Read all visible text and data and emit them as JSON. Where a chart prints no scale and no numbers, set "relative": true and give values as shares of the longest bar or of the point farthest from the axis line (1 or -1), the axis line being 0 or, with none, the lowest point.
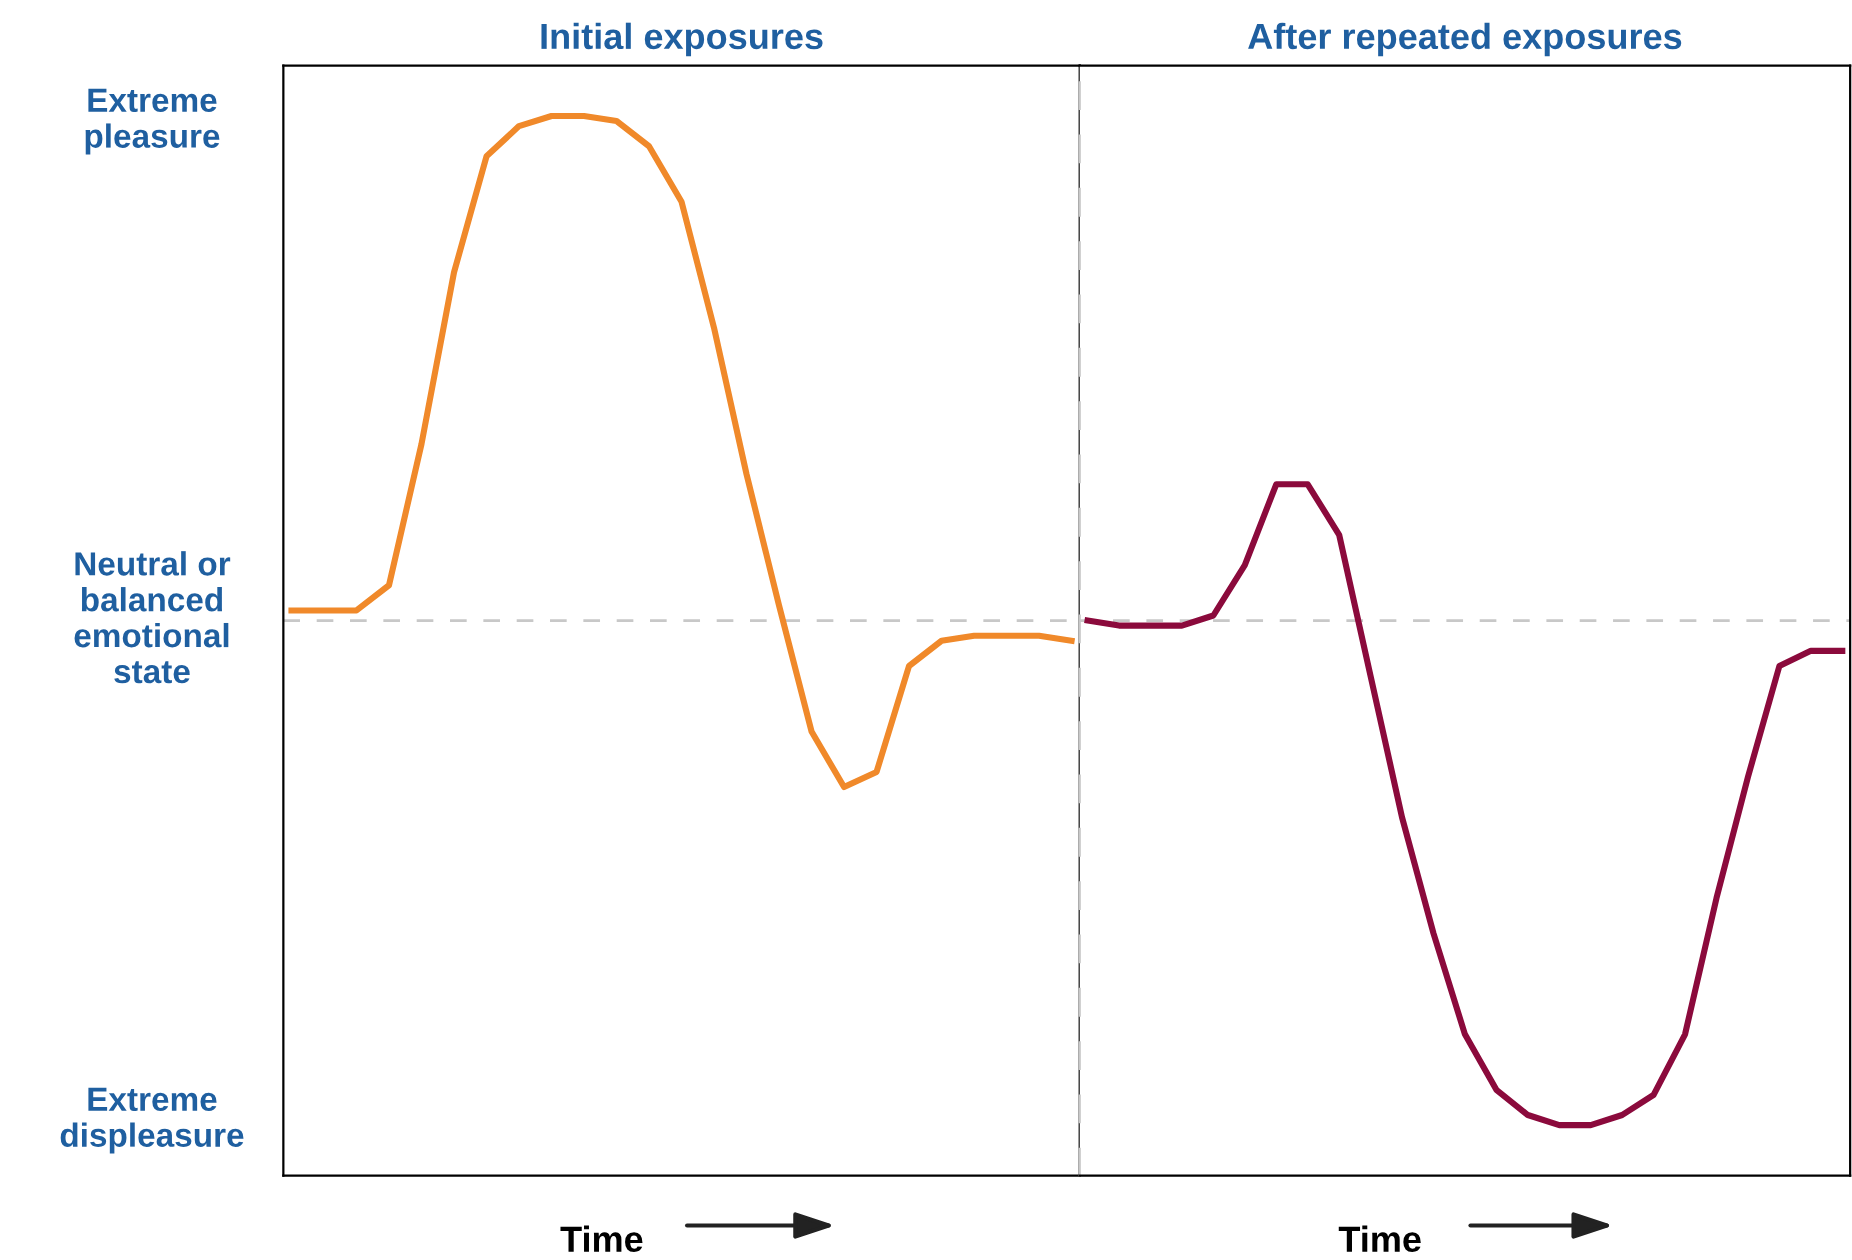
{
  "chart_data": [
    {
      "type": "line",
      "title": "Initial exposures",
      "xlabel": "Time",
      "relative": true,
      "categories": [
        null,
        null,
        null,
        null,
        null,
        null,
        null,
        null,
        null,
        null,
        null,
        null,
        null,
        null,
        null,
        null,
        null,
        null,
        null,
        null,
        null,
        null,
        null,
        null,
        null
      ],
      "series": [
        {
          "color": "#f0892a",
          "values": [
            0.02,
            0.02,
            0.02,
            0.07,
            0.35,
            0.69,
            0.92,
            0.98,
            1.0,
            1.0,
            0.99,
            0.94,
            0.83,
            0.58,
            0.29,
            0.03,
            -0.22,
            -0.33,
            -0.3,
            -0.09,
            -0.04,
            -0.03,
            -0.03,
            -0.03,
            -0.04
          ]
        }
      ],
      "annotations": [
        "Extreme\npleasure",
        "Neutral or\nbalanced\nemotional\nstate",
        "Extreme\ndispleasure"
      ],
      "ref_lines": [
        {
          "axis": "y",
          "value": 0,
          "color": "#c8c8c8",
          "line_style": "dashed"
        }
      ]
    },
    {
      "type": "line",
      "title": "After repeated exposures",
      "xlabel": "Time",
      "relative": true,
      "categories": [
        null,
        null,
        null,
        null,
        null,
        null,
        null,
        null,
        null,
        null,
        null,
        null,
        null,
        null,
        null,
        null,
        null,
        null,
        null,
        null,
        null,
        null,
        null,
        null,
        null
      ],
      "series": [
        {
          "color": "#8b0a3c",
          "values": [
            0.0,
            -0.01,
            -0.01,
            -0.01,
            0.01,
            0.11,
            0.27,
            0.27,
            0.17,
            -0.11,
            -0.39,
            -0.62,
            -0.82,
            -0.93,
            -0.98,
            -1.0,
            -1.0,
            -0.98,
            -0.94,
            -0.82,
            -0.55,
            -0.31,
            -0.09,
            -0.06,
            -0.06
          ]
        }
      ],
      "ref_lines": [
        {
          "axis": "y",
          "value": 0,
          "color": "#c8c8c8",
          "line_style": "dashed"
        }
      ]
    }
  ]
}
